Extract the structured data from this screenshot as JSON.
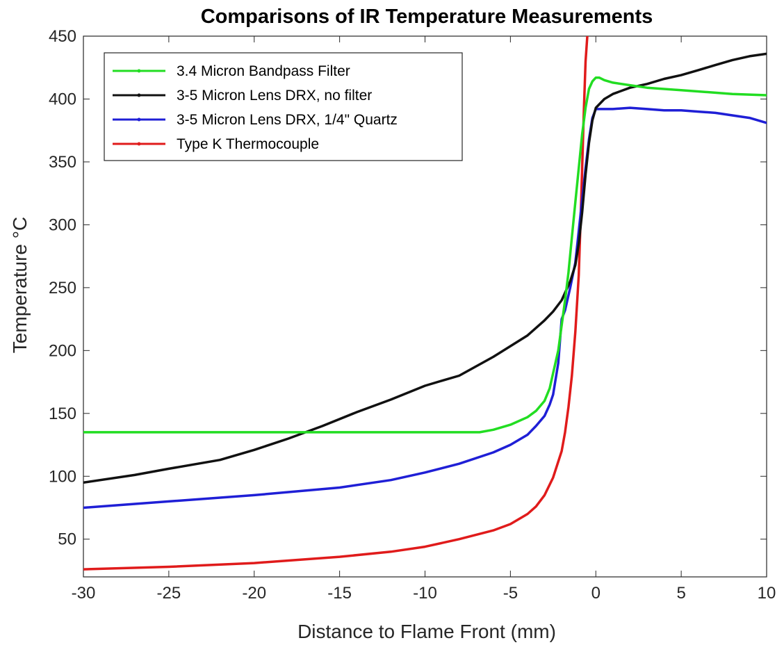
{
  "chart_data": {
    "type": "line",
    "title": "Comparisons of IR Temperature Measurements",
    "xlabel": "Distance to Flame Front (mm)",
    "ylabel": "Temperature °C",
    "xlim": [
      -30,
      10
    ],
    "ylim": [
      20,
      450
    ],
    "xticks": [
      -30,
      -25,
      -20,
      -15,
      -10,
      -5,
      0,
      5,
      10
    ],
    "yticks": [
      50,
      100,
      150,
      200,
      250,
      300,
      350,
      400,
      450
    ],
    "grid": false,
    "legend_position": "top-left",
    "series": [
      {
        "name": "3.4 Micron Bandpass Filter",
        "color": "#22dd22",
        "x": [
          -30,
          -20,
          -10,
          -6.8,
          -6,
          -5,
          -4,
          -3.5,
          -3,
          -2.7,
          -2.5,
          -2.2,
          -2,
          -1.8,
          -1.6,
          -1.4,
          -1.2,
          -1,
          -0.8,
          -0.6,
          -0.4,
          -0.2,
          0,
          0.2,
          0.5,
          1,
          2,
          3,
          5,
          7,
          8,
          10
        ],
        "y": [
          135,
          135,
          135,
          135,
          137,
          141,
          147,
          152,
          160,
          170,
          182,
          200,
          220,
          240,
          262,
          290,
          318,
          345,
          372,
          393,
          408,
          414,
          417,
          417,
          415,
          413,
          411,
          409,
          407,
          405,
          404,
          403
        ]
      },
      {
        "name": "3-5 Micron Lens DRX, no filter",
        "color": "#111111",
        "x": [
          -30,
          -27,
          -25,
          -22,
          -20,
          -18,
          -16,
          -14,
          -12,
          -10,
          -9,
          -8,
          -6,
          -4,
          -3,
          -2.5,
          -2,
          -1.5,
          -1.2,
          -1,
          -0.8,
          -0.6,
          -0.4,
          -0.2,
          0,
          0.5,
          1,
          2,
          3,
          4,
          5,
          6,
          7,
          8,
          9,
          10
        ],
        "y": [
          95,
          101,
          106,
          113,
          121,
          130,
          140,
          151,
          161,
          172,
          176,
          180,
          195,
          212,
          224,
          231,
          240,
          255,
          268,
          285,
          310,
          340,
          365,
          383,
          393,
          400,
          404,
          409,
          412,
          416,
          419,
          423,
          427,
          431,
          434,
          436
        ]
      },
      {
        "name": "3-5 Micron Lens DRX, 1/4\" Quartz",
        "color": "#1f1fd6",
        "x": [
          -30,
          -25,
          -20,
          -15,
          -12,
          -10,
          -8,
          -6,
          -5,
          -4,
          -3.5,
          -3,
          -2.7,
          -2.5,
          -2.2,
          -2,
          -1.8,
          -1.5,
          -1.2,
          -1,
          -0.8,
          -0.6,
          -0.4,
          -0.2,
          0,
          1,
          2,
          3,
          4,
          5,
          6,
          7,
          8,
          9,
          10
        ],
        "y": [
          75,
          80,
          85,
          91,
          97,
          103,
          110,
          119,
          125,
          133,
          140,
          148,
          157,
          165,
          190,
          225,
          232,
          250,
          270,
          295,
          320,
          345,
          368,
          385,
          392,
          392,
          393,
          392,
          391,
          391,
          390,
          389,
          387,
          385,
          381
        ]
      },
      {
        "name": "Type K Thermocouple",
        "color": "#e01b1b",
        "x": [
          -30,
          -25,
          -20,
          -15,
          -12,
          -10,
          -8,
          -6,
          -5,
          -4,
          -3.5,
          -3,
          -2.5,
          -2,
          -1.8,
          -1.6,
          -1.4,
          -1.2,
          -1,
          -0.9,
          -0.8,
          -0.7,
          -0.6,
          -0.5
        ],
        "y": [
          26,
          28,
          31,
          36,
          40,
          44,
          50,
          57,
          62,
          70,
          76,
          85,
          99,
          120,
          135,
          155,
          180,
          215,
          260,
          300,
          345,
          390,
          430,
          450
        ]
      }
    ]
  }
}
